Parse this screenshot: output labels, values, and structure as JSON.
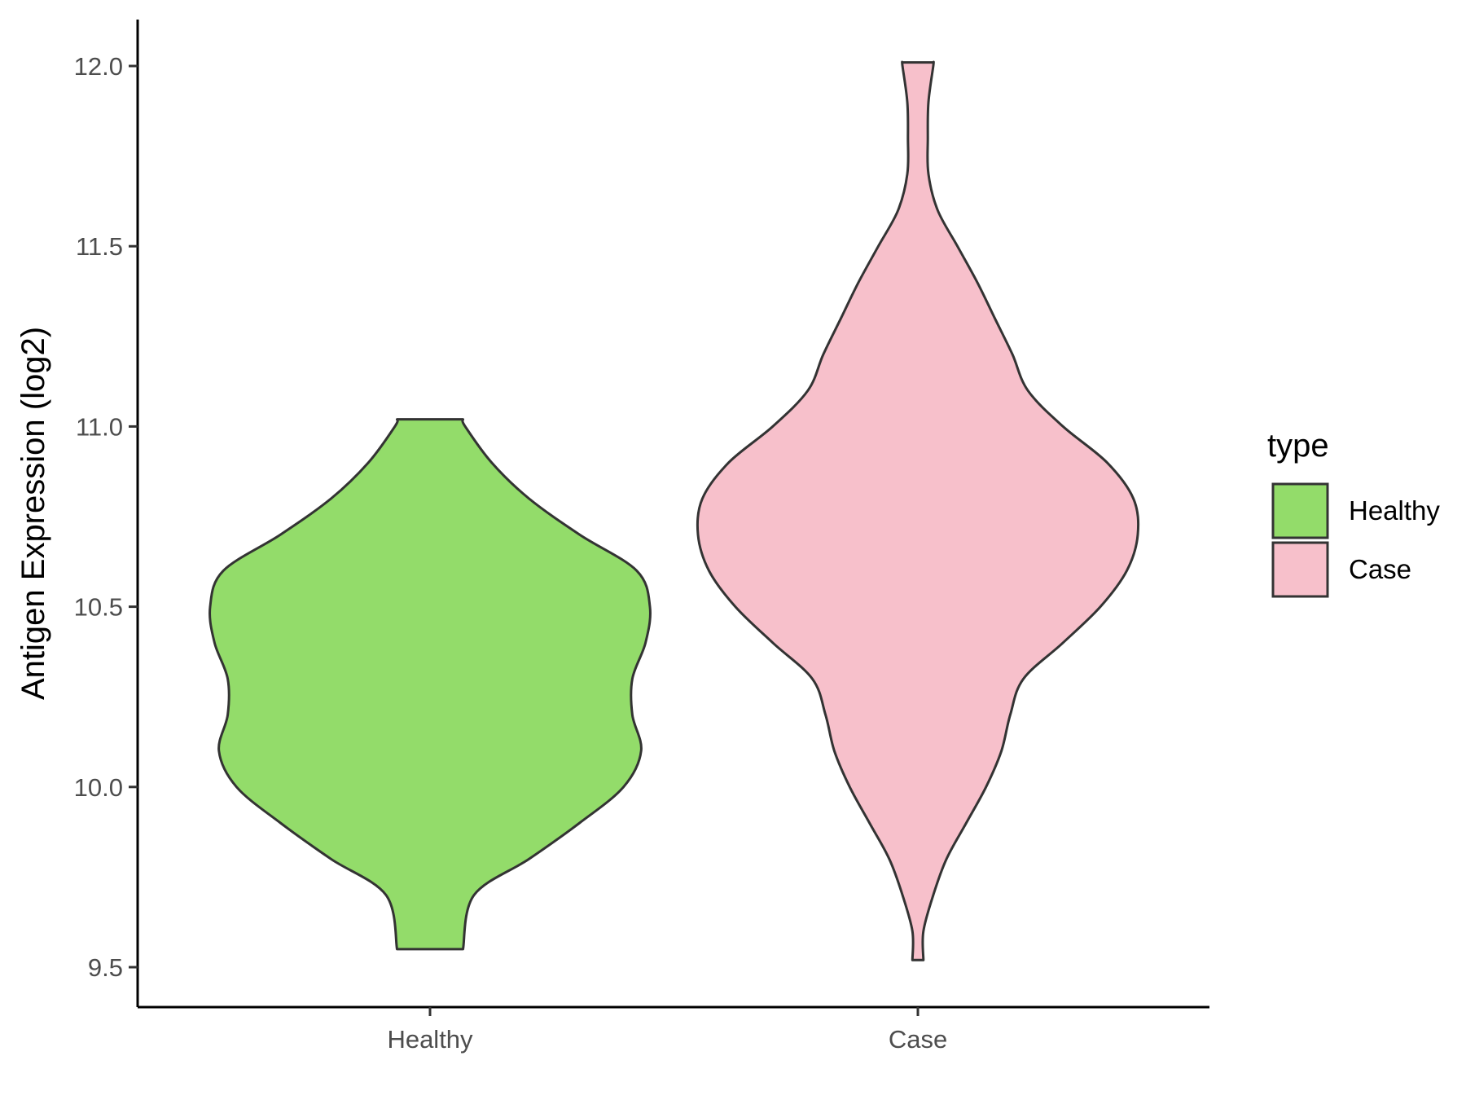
{
  "chart_data": {
    "type": "violin",
    "categories": [
      "Healthy",
      "Case"
    ],
    "ylabel": "Antigen Expression (log2)",
    "xlabel": "",
    "ylim": [
      9.39,
      12.14
    ],
    "yticks": [
      9.5,
      10.0,
      10.5,
      11.0,
      11.5,
      12.0
    ],
    "ytick_labels": [
      "9.5",
      "10.0",
      "10.5",
      "11.0",
      "11.5",
      "12.0"
    ],
    "grid": false,
    "legend": {
      "title": "type",
      "position": "right",
      "entries": [
        {
          "label": "Healthy",
          "color": "#93dc6a"
        },
        {
          "label": "Case",
          "color": "#f7c0cb"
        }
      ]
    },
    "series": [
      {
        "category": "Healthy",
        "color": "#93dc6a",
        "min": 9.55,
        "max": 11.02,
        "density_profile": [
          [
            9.55,
            0.15
          ],
          [
            9.7,
            0.2
          ],
          [
            9.8,
            0.45
          ],
          [
            9.9,
            0.68
          ],
          [
            10.0,
            0.88
          ],
          [
            10.1,
            0.96
          ],
          [
            10.2,
            0.92
          ],
          [
            10.3,
            0.92
          ],
          [
            10.4,
            0.98
          ],
          [
            10.5,
            1.0
          ],
          [
            10.6,
            0.94
          ],
          [
            10.7,
            0.68
          ],
          [
            10.8,
            0.45
          ],
          [
            10.9,
            0.28
          ],
          [
            11.0,
            0.16
          ],
          [
            11.02,
            0.15
          ]
        ]
      },
      {
        "category": "Case",
        "color": "#f7c0cb",
        "min": 9.52,
        "max": 12.01,
        "density_profile": [
          [
            9.52,
            0.025
          ],
          [
            9.6,
            0.025
          ],
          [
            9.7,
            0.07
          ],
          [
            9.8,
            0.13
          ],
          [
            9.9,
            0.22
          ],
          [
            10.0,
            0.31
          ],
          [
            10.1,
            0.38
          ],
          [
            10.2,
            0.42
          ],
          [
            10.3,
            0.48
          ],
          [
            10.4,
            0.66
          ],
          [
            10.5,
            0.83
          ],
          [
            10.6,
            0.95
          ],
          [
            10.7,
            1.0
          ],
          [
            10.8,
            0.98
          ],
          [
            10.9,
            0.86
          ],
          [
            11.0,
            0.66
          ],
          [
            11.1,
            0.5
          ],
          [
            11.2,
            0.43
          ],
          [
            11.3,
            0.35
          ],
          [
            11.4,
            0.27
          ],
          [
            11.5,
            0.18
          ],
          [
            11.6,
            0.09
          ],
          [
            11.7,
            0.048
          ],
          [
            11.8,
            0.045
          ],
          [
            11.9,
            0.048
          ],
          [
            12.0,
            0.07
          ],
          [
            12.01,
            0.07
          ]
        ]
      }
    ]
  }
}
